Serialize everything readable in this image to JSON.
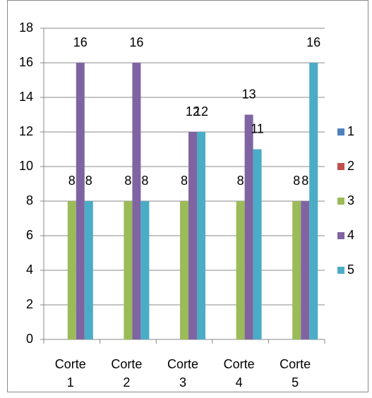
{
  "chart_data": {
    "type": "bar",
    "categories": [
      "Corte 1",
      "Corte 2",
      "Corte 3",
      "Corte 4",
      "Corte 5"
    ],
    "series": [
      {
        "name": "1",
        "color": "#4f81bd",
        "values": [
          null,
          null,
          null,
          null,
          null
        ]
      },
      {
        "name": "2",
        "color": "#c0504d",
        "values": [
          null,
          null,
          null,
          null,
          null
        ]
      },
      {
        "name": "3",
        "color": "#9bbb59",
        "values": [
          8,
          8,
          8,
          8,
          8
        ]
      },
      {
        "name": "4",
        "color": "#8064a2",
        "values": [
          16,
          16,
          12,
          13,
          8
        ]
      },
      {
        "name": "5",
        "color": "#4bacc6",
        "values": [
          8,
          8,
          12,
          11,
          16
        ]
      }
    ],
    "ylim": [
      0,
      18
    ],
    "yticks": [
      0,
      2,
      4,
      6,
      8,
      10,
      12,
      14,
      16,
      18
    ],
    "grid": true,
    "legend": "right"
  }
}
